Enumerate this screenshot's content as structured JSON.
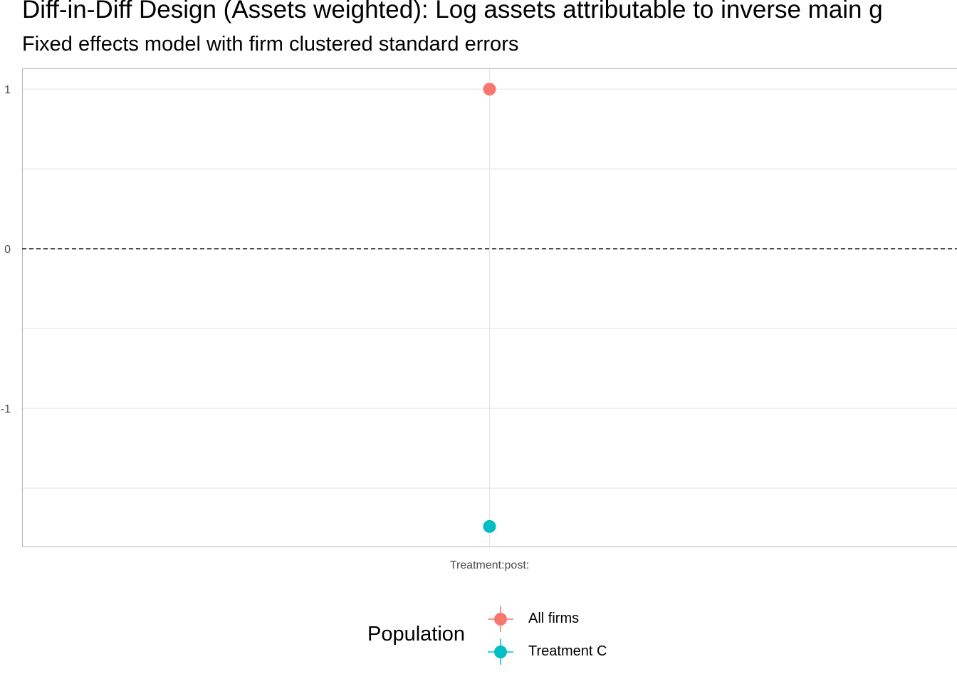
{
  "chart_data": {
    "type": "scatter",
    "title": "Diff-in-Diff Design (Assets weighted): Log assets attributable to inverse main g",
    "subtitle": "Fixed effects model with firm clustered standard errors",
    "xlabel": "",
    "ylabel": "",
    "categories": [
      "Treatment:post:"
    ],
    "ylim": [
      -1.87,
      1.13
    ],
    "y_ticks": [
      1,
      0,
      -1
    ],
    "reference_line": 0,
    "grid": true,
    "legend_title": "Population",
    "legend_position": "bottom",
    "series": [
      {
        "name": "All firms",
        "color": "#F8766D",
        "values": [
          1.0
        ]
      },
      {
        "name": "Treatment C",
        "color": "#00BFC4",
        "values": [
          -1.74
        ]
      }
    ]
  }
}
